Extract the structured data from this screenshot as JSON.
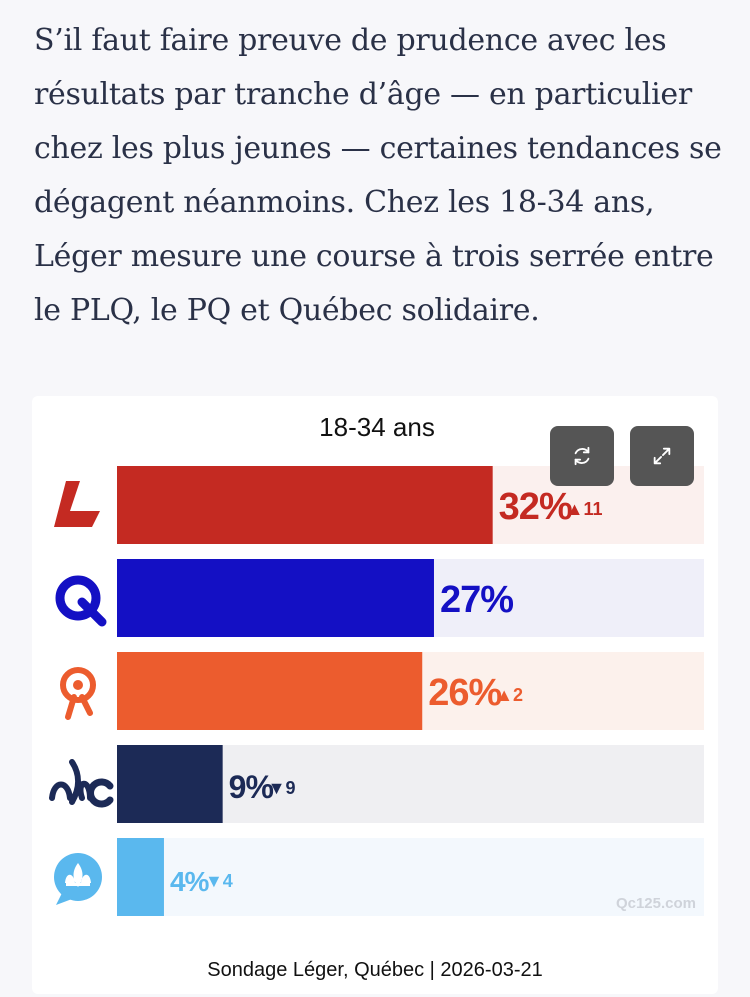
{
  "article": {
    "lines": [
      "S’il faut faire preuve de prudence avec les",
      "résultats par tranche d’âge — en particulier",
      "chez les plus jeunes — certaines tendances se",
      "dégagent néanmoins. Chez les 18-34 ans,",
      "Léger mesure une course à trois serrée entre",
      "le PLQ, le PQ et Québec solidaire."
    ]
  },
  "chart_controls": {
    "refresh_icon": "refresh-icon",
    "expand_icon": "expand-icon"
  },
  "chart_data": {
    "type": "bar",
    "orientation": "horizontal",
    "title": "18-34 ans",
    "source": "Sondage Léger, Québec | 2026-03-21",
    "watermark": "Qc125.com",
    "xlim": [
      0,
      50
    ],
    "categories": [
      "PLQ",
      "PQ",
      "QS",
      "CAQ",
      "PCQ"
    ],
    "values": [
      32,
      27,
      26,
      9,
      4
    ],
    "labels": [
      "32%",
      "27%",
      "26%",
      "9%",
      "4%"
    ],
    "changes": [
      {
        "direction": "up",
        "text": "▲11"
      },
      null,
      {
        "direction": "up",
        "text": "▲2"
      },
      {
        "direction": "down",
        "text": "▼9"
      },
      {
        "direction": "down",
        "text": "▼4"
      }
    ],
    "colors": [
      "#c42a22",
      "#1410c4",
      "#ec5c2e",
      "#1c2a56",
      "#5ab8ee"
    ],
    "track_colors": [
      "#fbf0ee",
      "#efeff9",
      "#fcf1ec",
      "#efeff2",
      "#f3f8fd"
    ],
    "label_colors": [
      "#c42a22",
      "#1410c4",
      "#ec5c2e",
      "#1c2a56",
      "#5ab8ee"
    ],
    "icons": [
      "plq-logo-icon",
      "pq-logo-icon",
      "qs-logo-icon",
      "caq-logo-icon",
      "pcq-logo-icon"
    ]
  }
}
